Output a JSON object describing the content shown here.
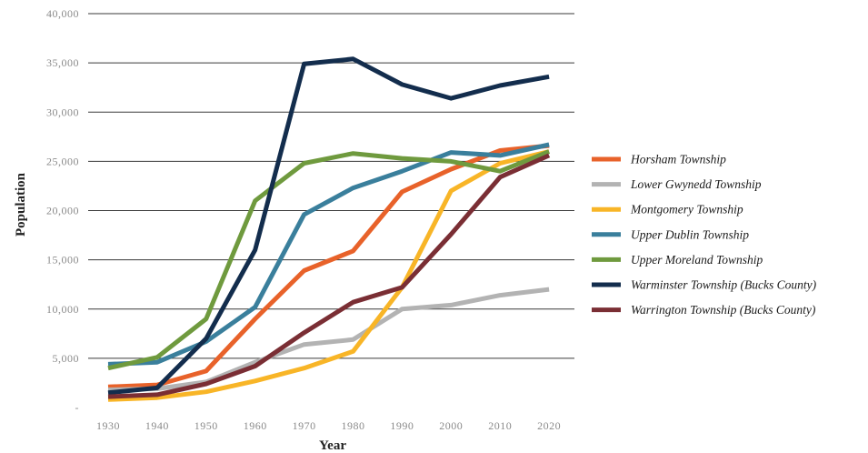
{
  "chart_data": {
    "type": "line",
    "xlabel": "Year",
    "ylabel": "Population",
    "x": [
      1930,
      1940,
      1950,
      1960,
      1970,
      1980,
      1990,
      2000,
      2010,
      2020
    ],
    "ylim": [
      0,
      40000
    ],
    "y_ticks": [
      {
        "value": 0,
        "label": "-"
      },
      {
        "value": 5000,
        "label": "5,000"
      },
      {
        "value": 10000,
        "label": "10,000"
      },
      {
        "value": 15000,
        "label": "15,000"
      },
      {
        "value": 20000,
        "label": "20,000"
      },
      {
        "value": 25000,
        "label": "25,000"
      },
      {
        "value": 30000,
        "label": "30,000"
      },
      {
        "value": 35000,
        "label": "35,000"
      },
      {
        "value": 40000,
        "label": "40,000"
      }
    ],
    "grid": true,
    "legend_position": "right",
    "series": [
      {
        "name": "Horsham Township",
        "color": "#e8622a",
        "values": [
          2100,
          2300,
          3700,
          9000,
          13900,
          15900,
          21900,
          24200,
          26100,
          26600
        ]
      },
      {
        "name": "Lower Gwynedd Township",
        "color": "#b3b3b3",
        "values": [
          1800,
          1900,
          2600,
          4600,
          6400,
          6900,
          10000,
          10400,
          11400,
          12000
        ]
      },
      {
        "name": "Montgomery Township",
        "color": "#f8b527",
        "values": [
          800,
          1000,
          1600,
          2700,
          4000,
          5700,
          12200,
          22000,
          24800,
          26000
        ]
      },
      {
        "name": "Upper Dublin Township",
        "color": "#3a7f9c",
        "values": [
          4400,
          4600,
          6700,
          10200,
          19600,
          22300,
          24000,
          25900,
          25600,
          26700
        ]
      },
      {
        "name": "Upper Moreland Township",
        "color": "#6f9a3e",
        "values": [
          4000,
          5100,
          9000,
          21000,
          24800,
          25800,
          25300,
          25000,
          24000,
          26000
        ]
      },
      {
        "name": "Warminster Township (Bucks County)",
        "color": "#132d4d",
        "values": [
          1500,
          2000,
          7000,
          16000,
          34900,
          35400,
          32800,
          31400,
          32700,
          33600
        ]
      },
      {
        "name": "Warrington Township (Bucks County)",
        "color": "#7a2e34",
        "values": [
          1100,
          1300,
          2400,
          4200,
          7600,
          10700,
          12200,
          17600,
          23400,
          25600
        ]
      }
    ]
  }
}
